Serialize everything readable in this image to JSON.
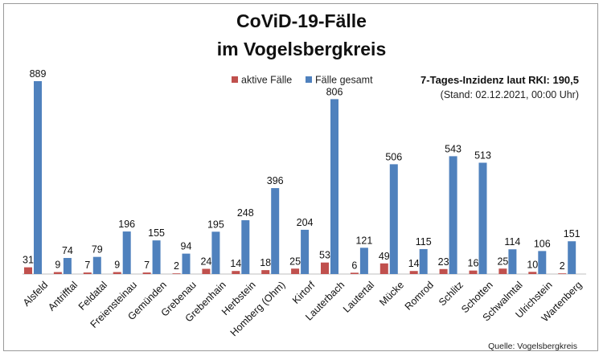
{
  "chart_data": {
    "type": "bar",
    "title": "CoViD-19-Fälle",
    "subtitle": "im Vogelsbergkreis",
    "categories": [
      "Alsfeld",
      "Antrifftal",
      "Feldatal",
      "Freiensteinau",
      "Gemünden",
      "Grebenau",
      "Grebenhain",
      "Herbstein",
      "Homberg (Ohm)",
      "Kirtorf",
      "Lauterbach",
      "Lautertal",
      "Mücke",
      "Romrod",
      "Schlitz",
      "Schotten",
      "Schwalmtal",
      "Ulrichstein",
      "Wartenberg"
    ],
    "series": [
      {
        "name": "aktive Fälle",
        "color": "#c0504d",
        "values": [
          31,
          9,
          7,
          9,
          7,
          2,
          24,
          14,
          18,
          25,
          53,
          6,
          49,
          14,
          23,
          16,
          25,
          10,
          2
        ]
      },
      {
        "name": "Fälle gesamt",
        "color": "#4f81bd",
        "values": [
          889,
          74,
          79,
          196,
          155,
          94,
          195,
          248,
          396,
          204,
          806,
          121,
          506,
          115,
          543,
          513,
          114,
          106,
          151
        ]
      }
    ],
    "legend": "top-center",
    "grid": false,
    "ylim": [
      0,
      1000
    ],
    "annotation": {
      "line1": "7-Tages-Inzidenz laut RKI: 190,5",
      "line2": "(Stand: 02.12.2021, 00:00 Uhr)"
    },
    "source": "Quelle: Vogelsbergkreis"
  }
}
